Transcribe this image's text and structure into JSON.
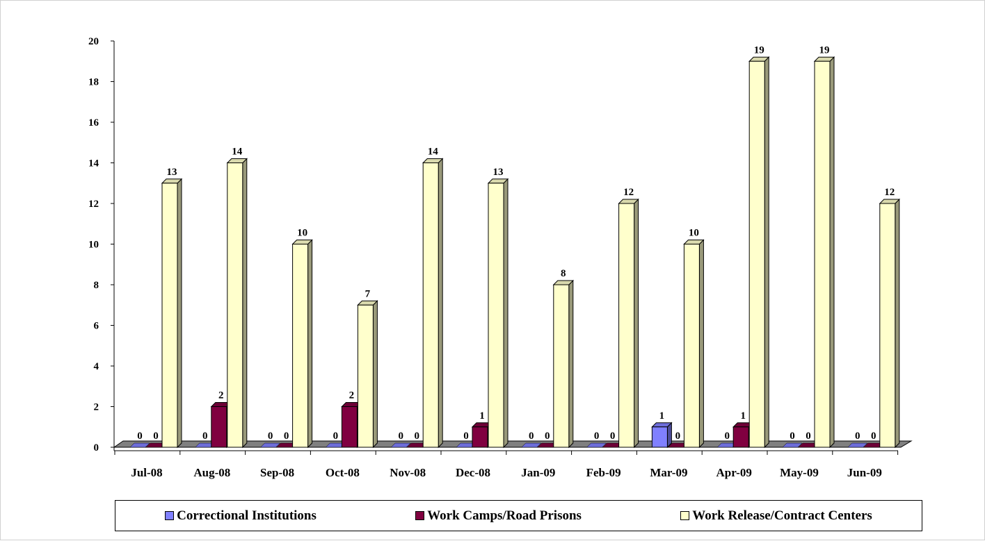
{
  "chart_data": {
    "type": "bar",
    "categories": [
      "Jul-08",
      "Aug-08",
      "Sep-08",
      "Oct-08",
      "Nov-08",
      "Dec-08",
      "Jan-09",
      "Feb-09",
      "Mar-09",
      "Apr-09",
      "May-09",
      "Jun-09"
    ],
    "series": [
      {
        "name": "Correctional Institutions",
        "color": "#8080ff",
        "values": [
          0,
          0,
          0,
          0,
          0,
          0,
          0,
          0,
          1,
          0,
          0,
          0
        ]
      },
      {
        "name": "Work Camps/Road Prisons",
        "color": "#800040",
        "values": [
          0,
          2,
          0,
          2,
          0,
          1,
          0,
          0,
          0,
          1,
          0,
          0
        ]
      },
      {
        "name": "Work Release/Contract Centers",
        "color": "#ffffcc",
        "values": [
          13,
          14,
          10,
          7,
          14,
          13,
          8,
          12,
          10,
          19,
          19,
          12
        ]
      }
    ],
    "y_ticks": [
      "0",
      "2",
      "4",
      "6",
      "8",
      "10",
      "12",
      "14",
      "16",
      "18",
      "20"
    ],
    "ylim": [
      0,
      20
    ],
    "grid": false,
    "legend_position": "bottom",
    "style": "3d-column"
  }
}
